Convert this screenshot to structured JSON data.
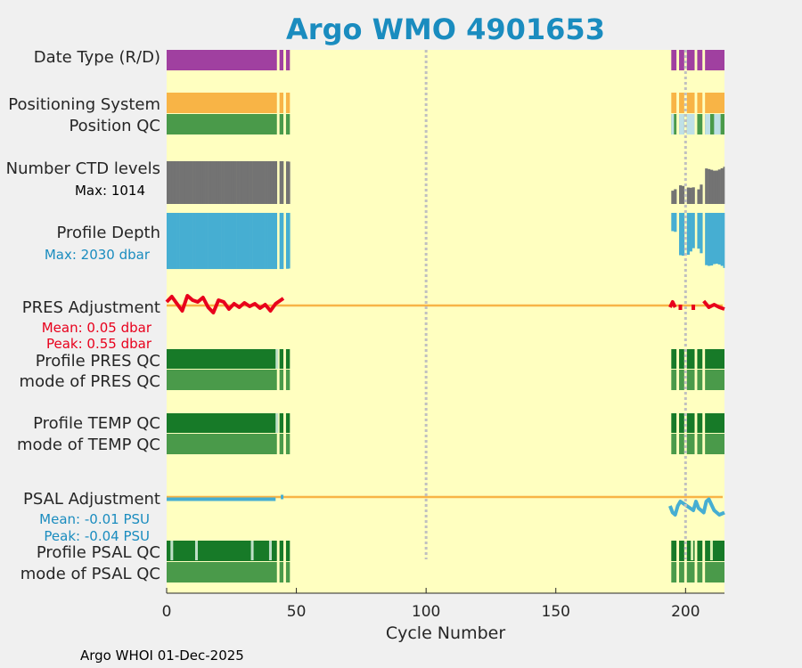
{
  "footer": "Argo WHOI 01-Dec-2025",
  "chart_data": {
    "type": "table",
    "title": "Argo WMO 4901653",
    "xlabel": "Cycle Number",
    "xlim": [
      0,
      215
    ],
    "xticks": [
      "0",
      "50",
      "100",
      "150",
      "200"
    ],
    "xtick_values": [
      0,
      50,
      100,
      150,
      200
    ],
    "reference_lines": [
      100,
      200
    ],
    "colors": {
      "background": "#ffffc0",
      "date_type": "#a040a0",
      "positioning": "#f8b446",
      "position_qc": "#4a9a4a",
      "position_qc_alt": "#bfe0e6",
      "ctd": "#737373",
      "depth": "#46aed2",
      "pres_adj": "#e8001c",
      "zero_line": "#f8b446",
      "qc_dark": "#177a28",
      "qc_light": "#4a9a4a",
      "psal_adj": "#46aed2",
      "gap": "#ffffc0"
    },
    "rows": [
      {
        "label": "Date Type (R/D)"
      },
      {
        "label": "Positioning System"
      },
      {
        "label": "Position QC"
      },
      {
        "label": "Number CTD levels",
        "note": "Max: 1014"
      },
      {
        "label": "Profile Depth",
        "note": "Max: 2030 dbar"
      },
      {
        "label": "PRES Adjustment",
        "mean": "Mean: 0.05 dbar",
        "peak": "Peak: 0.55 dbar"
      },
      {
        "label": "Profile PRES QC"
      },
      {
        "label": "mode of PRES QC"
      },
      {
        "label": "Profile TEMP QC"
      },
      {
        "label": "mode of TEMP QC"
      },
      {
        "label": "PSAL Adjustment",
        "mean": "Mean: -0.01 PSU",
        "peak": "Peak: -0.04 PSU"
      },
      {
        "label": "Profile PSAL QC"
      },
      {
        "label": "mode of PSAL QC"
      }
    ],
    "cycle_segments": [
      {
        "from": 0,
        "to": 42.5
      },
      {
        "from": 43.5,
        "to": 45
      },
      {
        "from": 46,
        "to": 47.5
      },
      {
        "from": 194.5,
        "to": 196.5
      },
      {
        "from": 197.5,
        "to": 199.5
      },
      {
        "from": 200.5,
        "to": 203.5
      },
      {
        "from": 204.5,
        "to": 206.5
      },
      {
        "from": 207.5,
        "to": 215
      }
    ],
    "ctd_levels": [
      {
        "x": 0,
        "v": 1014
      },
      {
        "x": 45,
        "v": 1014
      },
      {
        "x": 194,
        "v": 250
      },
      {
        "x": 195,
        "v": 380
      },
      {
        "x": 196,
        "v": 320
      },
      {
        "x": 197,
        "v": 450
      },
      {
        "x": 199,
        "v": 420
      },
      {
        "x": 201,
        "v": 380
      },
      {
        "x": 203,
        "v": 400
      },
      {
        "x": 205,
        "v": 330
      },
      {
        "x": 207,
        "v": 850
      },
      {
        "x": 209,
        "v": 820
      },
      {
        "x": 211,
        "v": 780
      },
      {
        "x": 213,
        "v": 830
      },
      {
        "x": 215,
        "v": 900
      }
    ],
    "profile_depth": [
      {
        "x": 0,
        "v": 2000
      },
      {
        "x": 45,
        "v": 2000
      },
      {
        "x": 194,
        "v": 600
      },
      {
        "x": 195,
        "v": 700
      },
      {
        "x": 196,
        "v": 650
      },
      {
        "x": 197,
        "v": 1500
      },
      {
        "x": 200,
        "v": 1550
      },
      {
        "x": 203,
        "v": 1200
      },
      {
        "x": 205,
        "v": 1300
      },
      {
        "x": 207,
        "v": 1850
      },
      {
        "x": 209,
        "v": 1900
      },
      {
        "x": 211,
        "v": 1800
      },
      {
        "x": 213,
        "v": 1850
      },
      {
        "x": 215,
        "v": 2000
      }
    ],
    "pres_adjustment": [
      {
        "x": 0,
        "v": 0.2
      },
      {
        "x": 2,
        "v": 0.5
      },
      {
        "x": 4,
        "v": 0.1
      },
      {
        "x": 6,
        "v": -0.3
      },
      {
        "x": 8,
        "v": 0.55
      },
      {
        "x": 10,
        "v": 0.3
      },
      {
        "x": 12,
        "v": 0.2
      },
      {
        "x": 14,
        "v": 0.45
      },
      {
        "x": 16,
        "v": -0.1
      },
      {
        "x": 18,
        "v": -0.4
      },
      {
        "x": 20,
        "v": 0.3
      },
      {
        "x": 22,
        "v": 0.2
      },
      {
        "x": 24,
        "v": -0.2
      },
      {
        "x": 26,
        "v": 0.1
      },
      {
        "x": 28,
        "v": -0.1
      },
      {
        "x": 30,
        "v": 0.15
      },
      {
        "x": 32,
        "v": -0.05
      },
      {
        "x": 34,
        "v": 0.1
      },
      {
        "x": 36,
        "v": -0.15
      },
      {
        "x": 38,
        "v": 0.05
      },
      {
        "x": 40,
        "v": -0.3
      },
      {
        "x": 42,
        "v": 0.1
      },
      {
        "x": 44,
        "v": 0.3
      },
      {
        "x": 45,
        "v": 0.4
      },
      {
        "x": 194,
        "v": -0.1
      },
      {
        "x": 195,
        "v": 0.2
      },
      {
        "x": 196,
        "v": -0.1
      },
      {
        "x": 198,
        "v": -0.2
      },
      {
        "x": 203,
        "v": -0.2
      },
      {
        "x": 207,
        "v": 0.25
      },
      {
        "x": 209,
        "v": -0.1
      },
      {
        "x": 211,
        "v": 0.05
      },
      {
        "x": 213,
        "v": -0.1
      },
      {
        "x": 215,
        "v": -0.2
      }
    ],
    "psal_adjustment": [
      {
        "x": 0,
        "v": -0.005
      },
      {
        "x": 42,
        "v": -0.005
      },
      {
        "x": 44.5,
        "v": -0.005
      },
      {
        "x": 194,
        "v": -0.02
      },
      {
        "x": 195,
        "v": -0.035
      },
      {
        "x": 196,
        "v": -0.04
      },
      {
        "x": 197,
        "v": -0.02
      },
      {
        "x": 198,
        "v": -0.01
      },
      {
        "x": 203,
        "v": -0.03
      },
      {
        "x": 204,
        "v": -0.01
      },
      {
        "x": 205,
        "v": -0.025
      },
      {
        "x": 207,
        "v": -0.035
      },
      {
        "x": 208,
        "v": -0.01
      },
      {
        "x": 209,
        "v": -0.005
      },
      {
        "x": 211,
        "v": -0.03
      },
      {
        "x": 212,
        "v": -0.035
      },
      {
        "x": 213,
        "v": -0.04
      },
      {
        "x": 215,
        "v": -0.035
      }
    ],
    "profile_qc_light_marks": [
      {
        "row": "pres",
        "x": 42.5
      },
      {
        "row": "temp",
        "x": 42.5
      },
      {
        "row": "psal",
        "x": 2
      },
      {
        "row": "psal",
        "x": 11.5
      },
      {
        "row": "psal",
        "x": 33
      },
      {
        "row": "psal",
        "x": 40
      },
      {
        "row": "psal",
        "x": 202.5
      },
      {
        "row": "psal",
        "x": 210
      }
    ],
    "position_qc_alt_segments": [
      {
        "from": 194.5,
        "to": 195.5
      },
      {
        "from": 197.5,
        "to": 199.5
      },
      {
        "from": 200.5,
        "to": 203.5
      },
      {
        "from": 207.5,
        "to": 209.5
      },
      {
        "from": 211,
        "to": 213.5
      }
    ]
  }
}
